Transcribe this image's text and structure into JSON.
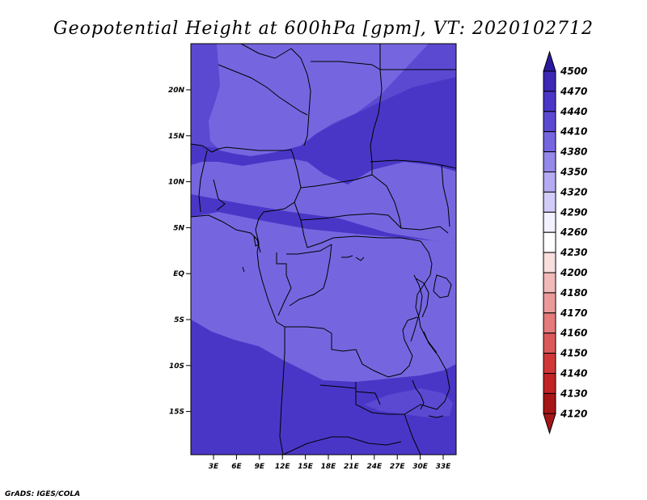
{
  "title": "Geopotential Height at 600hPa [gpm], VT: 2020102712",
  "credit": "GrADS: IGES/COLA",
  "map": {
    "y_axis_labels": [
      "20N",
      "15N",
      "10N",
      "5N",
      "EQ",
      "5S",
      "10S",
      "15S"
    ],
    "x_axis_labels": [
      "3E",
      "6E",
      "9E",
      "12E",
      "15E",
      "18E",
      "21E",
      "24E",
      "27E",
      "30E",
      "33E"
    ],
    "field_colors": {
      "4350": "#7566e0",
      "4380": "#5b49d2",
      "4410": "#4a36c6"
    }
  },
  "colorbar": {
    "levels": [
      "4500",
      "4470",
      "4440",
      "4410",
      "4380",
      "4350",
      "4320",
      "4290",
      "4260",
      "4230",
      "4200",
      "4180",
      "4170",
      "4160",
      "4150",
      "4140",
      "4130",
      "4120"
    ],
    "colors": [
      "#2a1a9e",
      "#3b28b4",
      "#4a36c6",
      "#5b49d2",
      "#7566e0",
      "#9488ea",
      "#b4abf2",
      "#d2cdf8",
      "#f3f2ff",
      "#ffffff",
      "#f9dede",
      "#f2b9b9",
      "#eb9a9a",
      "#e47a7a",
      "#dc5959",
      "#d03838",
      "#c02424",
      "#a61616"
    ]
  }
}
